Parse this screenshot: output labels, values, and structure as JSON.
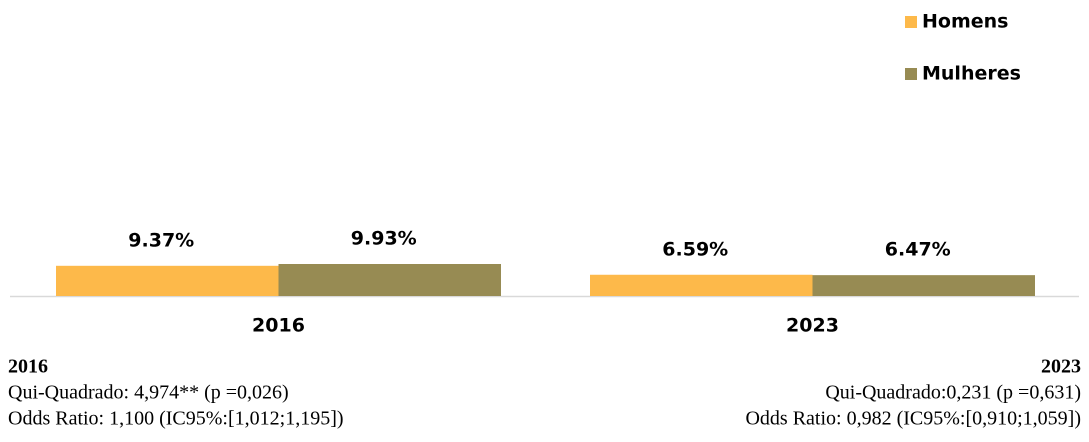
{
  "chart_data": {
    "type": "bar",
    "categories": [
      "2016",
      "2023"
    ],
    "series": [
      {
        "name": "Homens",
        "color": "#fdb94a",
        "values": [
          9.37,
          6.59
        ],
        "value_labels": [
          "9.37%",
          "6.59%"
        ]
      },
      {
        "name": "Mulheres",
        "color": "#978b53",
        "values": [
          9.93,
          6.47
        ],
        "value_labels": [
          "9.93%",
          "6.47%"
        ]
      }
    ],
    "legend": "top-right",
    "notes": [
      {
        "title": "2016",
        "lines": [
          "Qui-Quadrado: 4,974** (p =0,026)",
          "Odds Ratio: 1,100 (IC95%:[1,012;1,195])"
        ]
      },
      {
        "title": "2023",
        "lines": [
          "Qui-Quadrado:0,231 (p =0,631)",
          "Odds Ratio: 0,982 (IC95%:[0,910;1,059])"
        ]
      }
    ]
  }
}
